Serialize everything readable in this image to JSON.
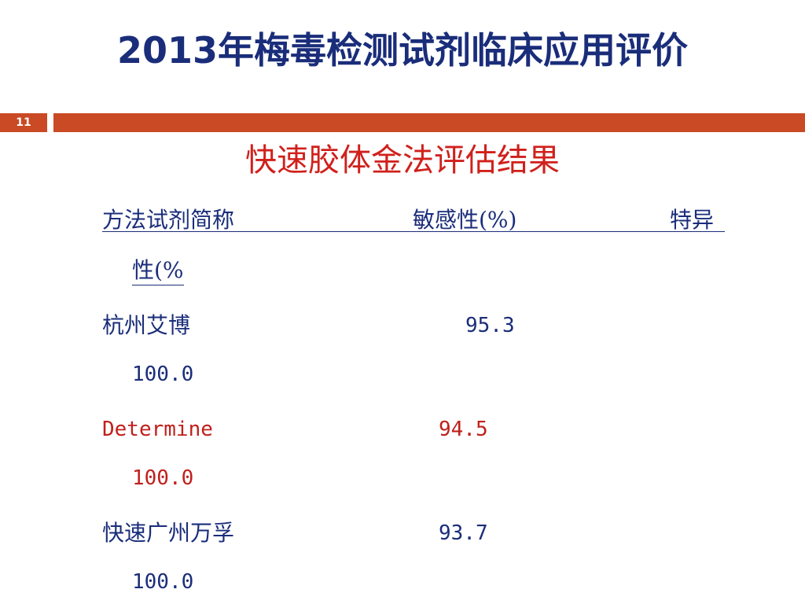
{
  "slide": {
    "title": "2013年梅毒检测试剂临床应用评价",
    "page_number": "11",
    "subtitle": "快速胶体金法评估结果"
  },
  "table": {
    "header": {
      "col1": "方法试剂简称",
      "col2": "敏感性(%)",
      "col3": "特异",
      "col3_wrap": "性(%"
    },
    "rows": [
      {
        "name": "杭州艾博",
        "sensitivity": "95.3",
        "specificity": "100.0",
        "highlight": false
      },
      {
        "name": "Determine",
        "sensitivity": "94.5",
        "specificity": "100.0",
        "highlight": true
      },
      {
        "name": "快速广州万孚",
        "sensitivity": "93.7",
        "specificity": "100.0",
        "highlight": false
      }
    ]
  },
  "colors": {
    "title": "#1a2d7a",
    "accent_bar": "#c94a24",
    "subtitle": "#d0201c",
    "highlight_row": "#c0201c"
  }
}
